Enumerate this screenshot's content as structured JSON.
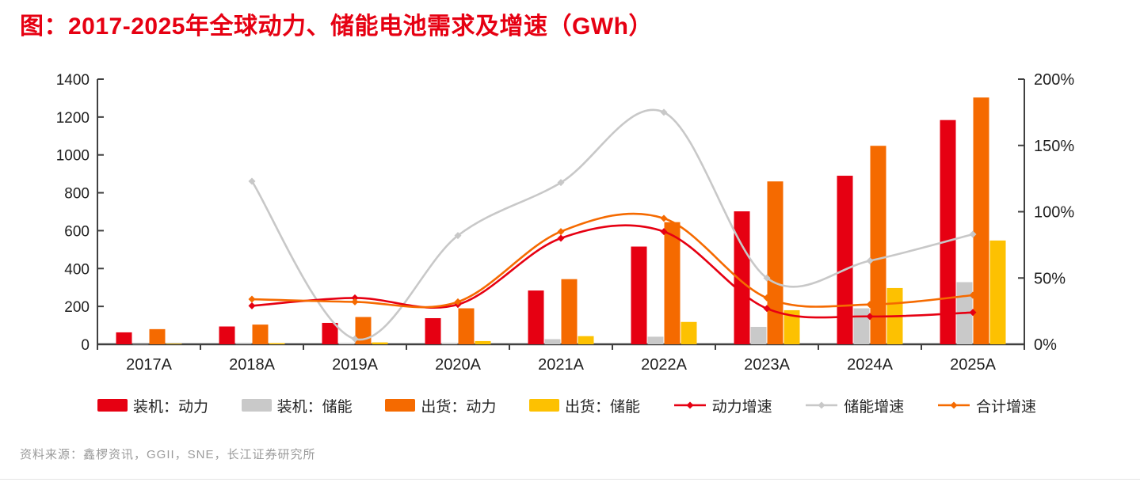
{
  "title": "图：2017-2025年全球动力、储能电池需求及增速（GWh）",
  "source": "资料来源：鑫椤资讯，GGII，SNE，长江证券研究所",
  "colors": {
    "title_red": "#e60012",
    "bar_install_power": "#e60012",
    "bar_install_storage": "#c9c9c9",
    "bar_ship_power": "#f56a00",
    "bar_ship_storage": "#fdc101",
    "line_power_growth": "#e60012",
    "line_storage_growth": "#c8c8c8",
    "line_total_growth": "#f56a00",
    "axis": "#404040",
    "axis_text": "#1f1f1f",
    "source_text": "#9b9b9b"
  },
  "chart_data": {
    "type": "bar",
    "subtype": "combo-bar-line",
    "title": "图：2017-2025年全球动力、储能电池需求及增速（GWh）",
    "categories": [
      "2017A",
      "2018A",
      "2019A",
      "2020A",
      "2021A",
      "2022A",
      "2023A",
      "2024A",
      "2025A"
    ],
    "left_axis": {
      "label": "GWh",
      "min": 0,
      "max": 1400,
      "step": 200,
      "tick_labels": [
        "1400",
        "1200",
        "1000",
        "800",
        "600",
        "400",
        "200",
        "0"
      ]
    },
    "right_axis": {
      "label": "增速",
      "min_pct": 0,
      "max_pct": 200,
      "step_pct": 50,
      "tick_labels": [
        "200%",
        "150%",
        "100%",
        "50%",
        "0%"
      ]
    },
    "grid": "off",
    "legend_position": "bottom",
    "bar_series": [
      {
        "name": "装机：动力",
        "color": "#e60012",
        "values": [
          63,
          94,
          113,
          138,
          284,
          516,
          702,
          890,
          1184
        ]
      },
      {
        "name": "装机：储能",
        "color": "#c9c9c9",
        "values": [
          1,
          3,
          5,
          8,
          27,
          40,
          92,
          190,
          328
        ]
      },
      {
        "name": "出货：动力",
        "color": "#f56a00",
        "values": [
          80,
          104,
          144,
          190,
          344,
          645,
          860,
          1048,
          1303
        ]
      },
      {
        "name": "出货：储能",
        "color": "#fdc101",
        "values": [
          3,
          6,
          10,
          17,
          43,
          118,
          180,
          297,
          548
        ]
      }
    ],
    "line_series": [
      {
        "name": "储能增速",
        "color": "#c8c8c8",
        "values_pct": [
          null,
          123,
          4,
          82,
          122,
          175,
          50,
          63,
          83
        ]
      },
      {
        "name": "动力增速",
        "color": "#e60012",
        "values_pct": [
          null,
          29,
          35,
          30,
          80,
          85,
          27,
          21,
          24
        ]
      },
      {
        "name": "合计增速",
        "color": "#f56a00",
        "values_pct": [
          null,
          34,
          32,
          32,
          85,
          95,
          35,
          30,
          37
        ]
      }
    ],
    "legend": [
      {
        "type": "bar",
        "color": "#e60012",
        "label": "装机：动力"
      },
      {
        "type": "bar",
        "color": "#c9c9c9",
        "label": "装机：储能"
      },
      {
        "type": "bar",
        "color": "#f56a00",
        "label": "出货：动力"
      },
      {
        "type": "bar",
        "color": "#fdc101",
        "label": "出货：储能"
      },
      {
        "type": "line",
        "color": "#e60012",
        "label": "动力增速"
      },
      {
        "type": "line",
        "color": "#c8c8c8",
        "label": "储能增速"
      },
      {
        "type": "line",
        "color": "#f56a00",
        "label": "合计增速"
      }
    ]
  }
}
